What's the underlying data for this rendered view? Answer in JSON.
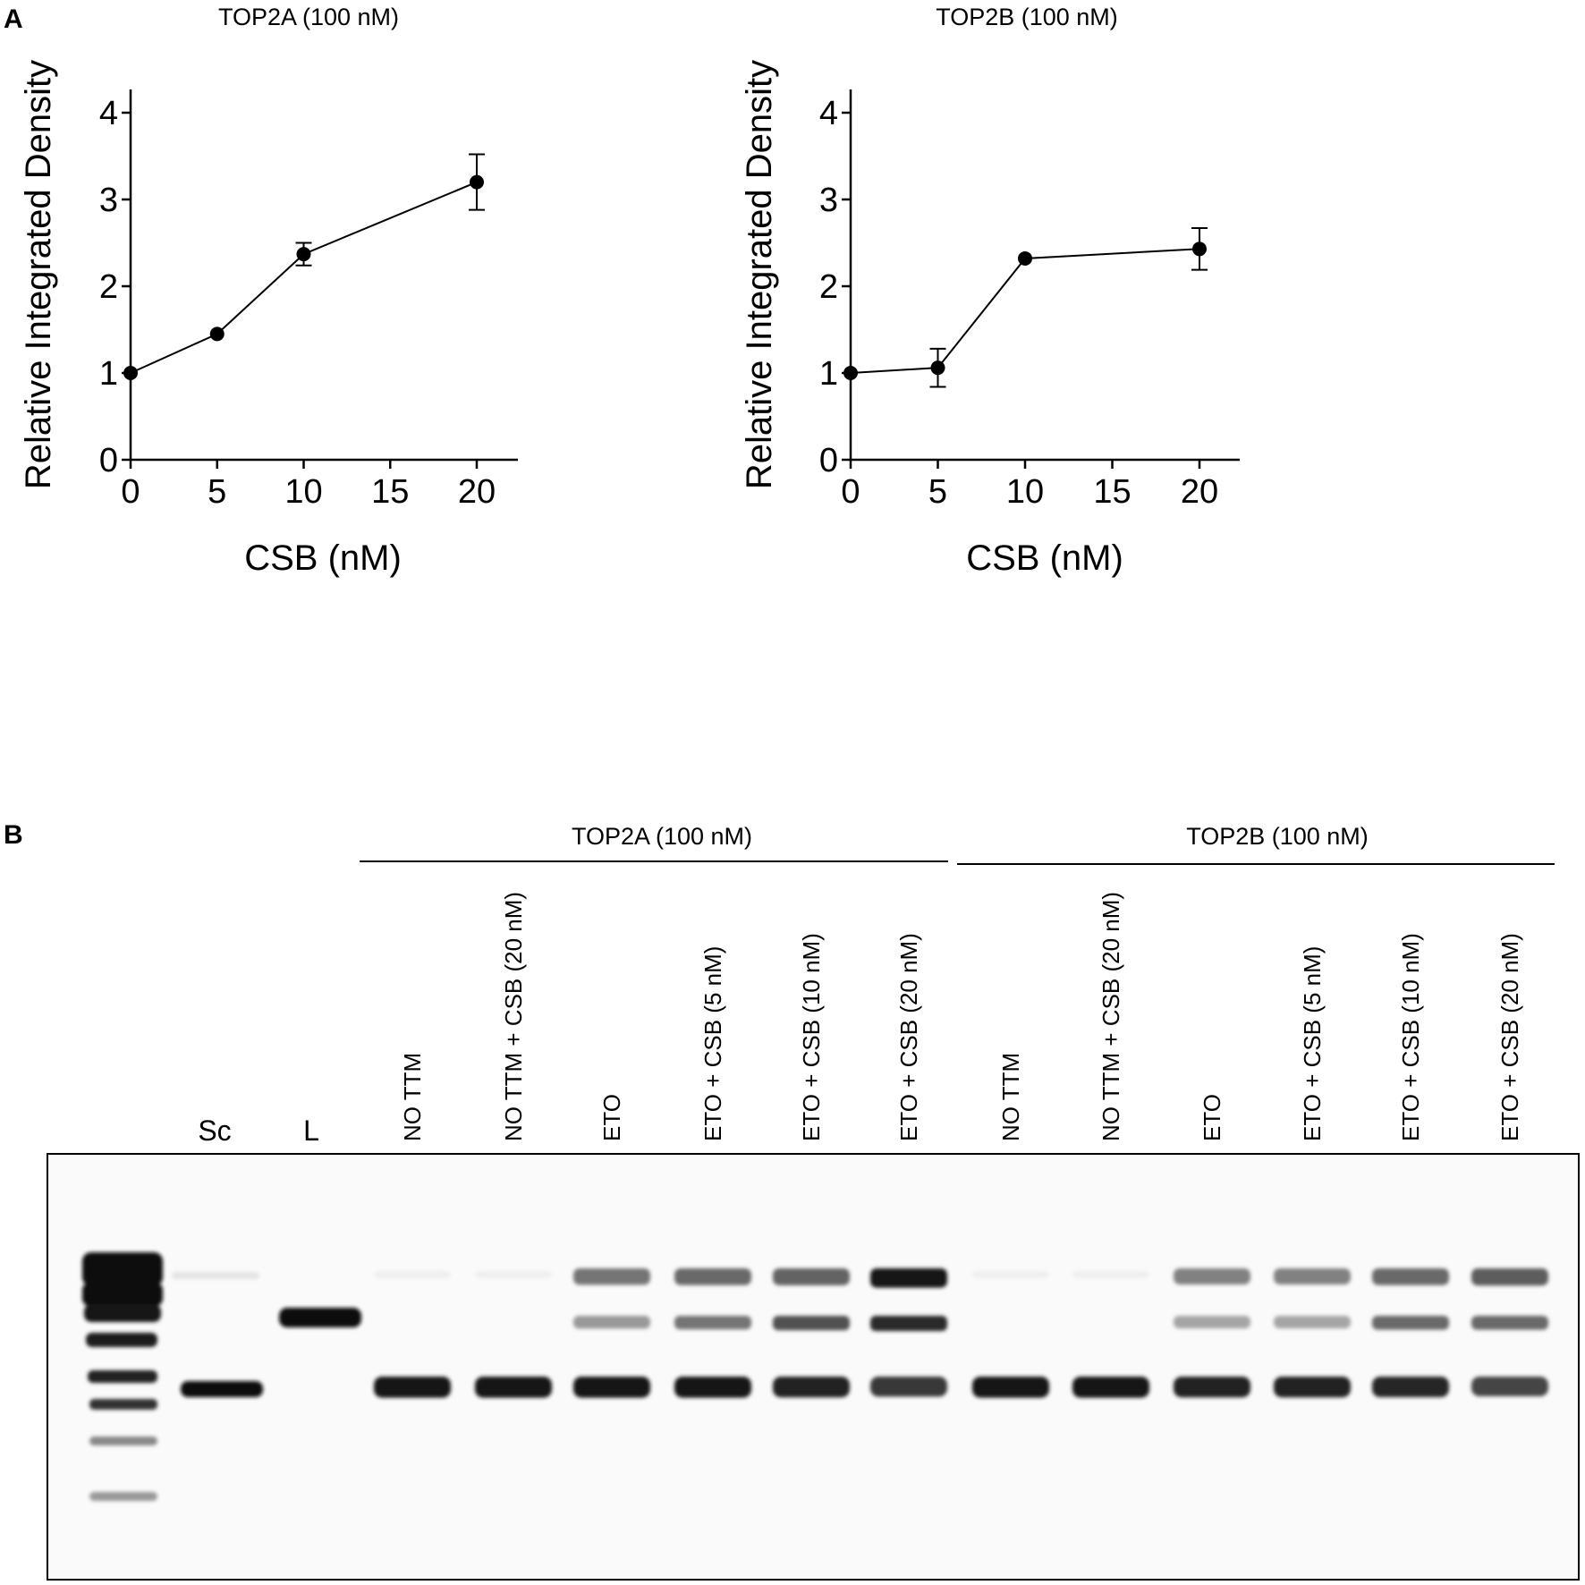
{
  "panel_a_label": "A",
  "panel_b_label": "B",
  "chart_data": [
    {
      "type": "line",
      "title": "TOP2A (100 nM)",
      "xlabel": "CSB (nM)",
      "ylabel": "Relative Integrated Density",
      "x": [
        0,
        5,
        10,
        20
      ],
      "y": [
        1.0,
        1.45,
        2.37,
        3.2
      ],
      "error": [
        0,
        0,
        0.13,
        0.32
      ],
      "xlim": [
        0,
        22
      ],
      "ylim": [
        0,
        4.2
      ],
      "xticks": [
        0,
        5,
        10,
        15,
        20
      ],
      "yticks": [
        0,
        1,
        2,
        3,
        4
      ],
      "grid": false
    },
    {
      "type": "line",
      "title": "TOP2B (100 nM)",
      "xlabel": "CSB (nM)",
      "ylabel": "Relative Integrated Density",
      "x": [
        0,
        5,
        10,
        20
      ],
      "y": [
        1.0,
        1.06,
        2.32,
        2.43
      ],
      "error": [
        0,
        0.22,
        0,
        0.24
      ],
      "xlim": [
        0,
        22
      ],
      "ylim": [
        0,
        4.2
      ],
      "xticks": [
        0,
        5,
        10,
        15,
        20
      ],
      "yticks": [
        0,
        1,
        2,
        3,
        4
      ],
      "grid": false
    }
  ],
  "gel": {
    "group_top2a": "TOP2A (100 nM)",
    "group_top2b": "TOP2B (100 nM)",
    "marker_sc": "Sc",
    "marker_l": "L",
    "lanes": [
      "NO TTM",
      "NO TTM + CSB (20 nM)",
      "ETO",
      "ETO  + CSB (5 nM)",
      "ETO  + CSB (10 nM)",
      "ETO  + CSB (20 nM)",
      "NO TTM",
      "NO TTM + CSB (20 nM)",
      "ETO",
      "ETO  + CSB (5 nM)",
      "ETO + CSB (10 nM)",
      "ETO + CSB (20 nM)"
    ],
    "band_levels": {
      "top": [
        0.05,
        0.05,
        0.55,
        0.6,
        0.62,
        0.95,
        0.05,
        0.05,
        0.5,
        0.5,
        0.6,
        0.65
      ],
      "middle": [
        0,
        0,
        0.4,
        0.55,
        0.7,
        0.85,
        0,
        0,
        0.35,
        0.35,
        0.6,
        0.6
      ],
      "bottom": [
        0.95,
        0.95,
        0.95,
        0.95,
        0.9,
        0.8,
        0.95,
        0.95,
        0.9,
        0.9,
        0.88,
        0.75
      ]
    }
  }
}
